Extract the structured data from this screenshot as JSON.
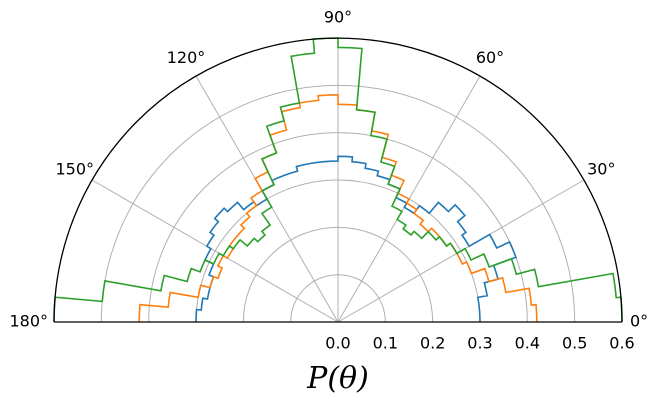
{
  "chart_data": {
    "type": "polar-step",
    "projection": "polar",
    "theta_range_deg": [
      0,
      180
    ],
    "r_range": [
      0,
      0.6
    ],
    "xlabel": "P(θ)",
    "grid": true,
    "angle_ticks": [
      {
        "deg": 0,
        "label": "0°"
      },
      {
        "deg": 30,
        "label": "30°"
      },
      {
        "deg": 60,
        "label": "60°"
      },
      {
        "deg": 90,
        "label": "90°"
      },
      {
        "deg": 120,
        "label": "120°"
      },
      {
        "deg": 150,
        "label": "150°"
      },
      {
        "deg": 180,
        "label": "180°"
      }
    ],
    "r_ticks": [
      {
        "value": 0.0,
        "label": "0.0"
      },
      {
        "value": 0.1,
        "label": "0.1"
      },
      {
        "value": 0.2,
        "label": "0.2"
      },
      {
        "value": 0.3,
        "label": "0.3"
      },
      {
        "value": 0.4,
        "label": "0.4"
      },
      {
        "value": 0.5,
        "label": "0.5"
      },
      {
        "value": 0.6,
        "label": "0.6"
      }
    ],
    "bin_edges_deg": [
      0,
      5,
      10,
      15,
      20,
      25,
      30,
      35,
      40,
      45,
      50,
      55,
      60,
      65,
      70,
      75,
      80,
      85,
      90,
      95,
      100,
      105,
      110,
      115,
      120,
      125,
      130,
      135,
      140,
      145,
      150,
      155,
      160,
      165,
      170,
      175,
      180
    ],
    "series": [
      {
        "color": "#1f77b4",
        "values": [
          0.3,
          0.3,
          0.32,
          0.35,
          0.4,
          0.37,
          0.32,
          0.33,
          0.35,
          0.33,
          0.3,
          0.28,
          0.29,
          0.31,
          0.32,
          0.33,
          0.34,
          0.35,
          0.34,
          0.34,
          0.34,
          0.33,
          0.33,
          0.32,
          0.3,
          0.31,
          0.33,
          0.34,
          0.33,
          0.32,
          0.31,
          0.29,
          0.28,
          0.28,
          0.29,
          0.3
        ]
      },
      {
        "color": "#ff7f0e",
        "values": [
          0.42,
          0.41,
          0.36,
          0.33,
          0.3,
          0.29,
          0.29,
          0.28,
          0.28,
          0.27,
          0.28,
          0.29,
          0.3,
          0.33,
          0.36,
          0.41,
          0.45,
          0.46,
          0.48,
          0.47,
          0.46,
          0.42,
          0.38,
          0.35,
          0.32,
          0.3,
          0.29,
          0.28,
          0.28,
          0.27,
          0.28,
          0.27,
          0.28,
          0.3,
          0.36,
          0.42
        ]
      },
      {
        "color": "#2ca02c",
        "values": [
          0.6,
          0.59,
          0.43,
          0.39,
          0.34,
          0.31,
          0.29,
          0.28,
          0.27,
          0.25,
          0.24,
          0.25,
          0.27,
          0.31,
          0.35,
          0.4,
          0.45,
          0.58,
          0.6,
          0.57,
          0.47,
          0.44,
          0.38,
          0.32,
          0.28,
          0.25,
          0.24,
          0.25,
          0.27,
          0.28,
          0.29,
          0.31,
          0.33,
          0.38,
          0.5,
          0.6
        ]
      }
    ]
  }
}
